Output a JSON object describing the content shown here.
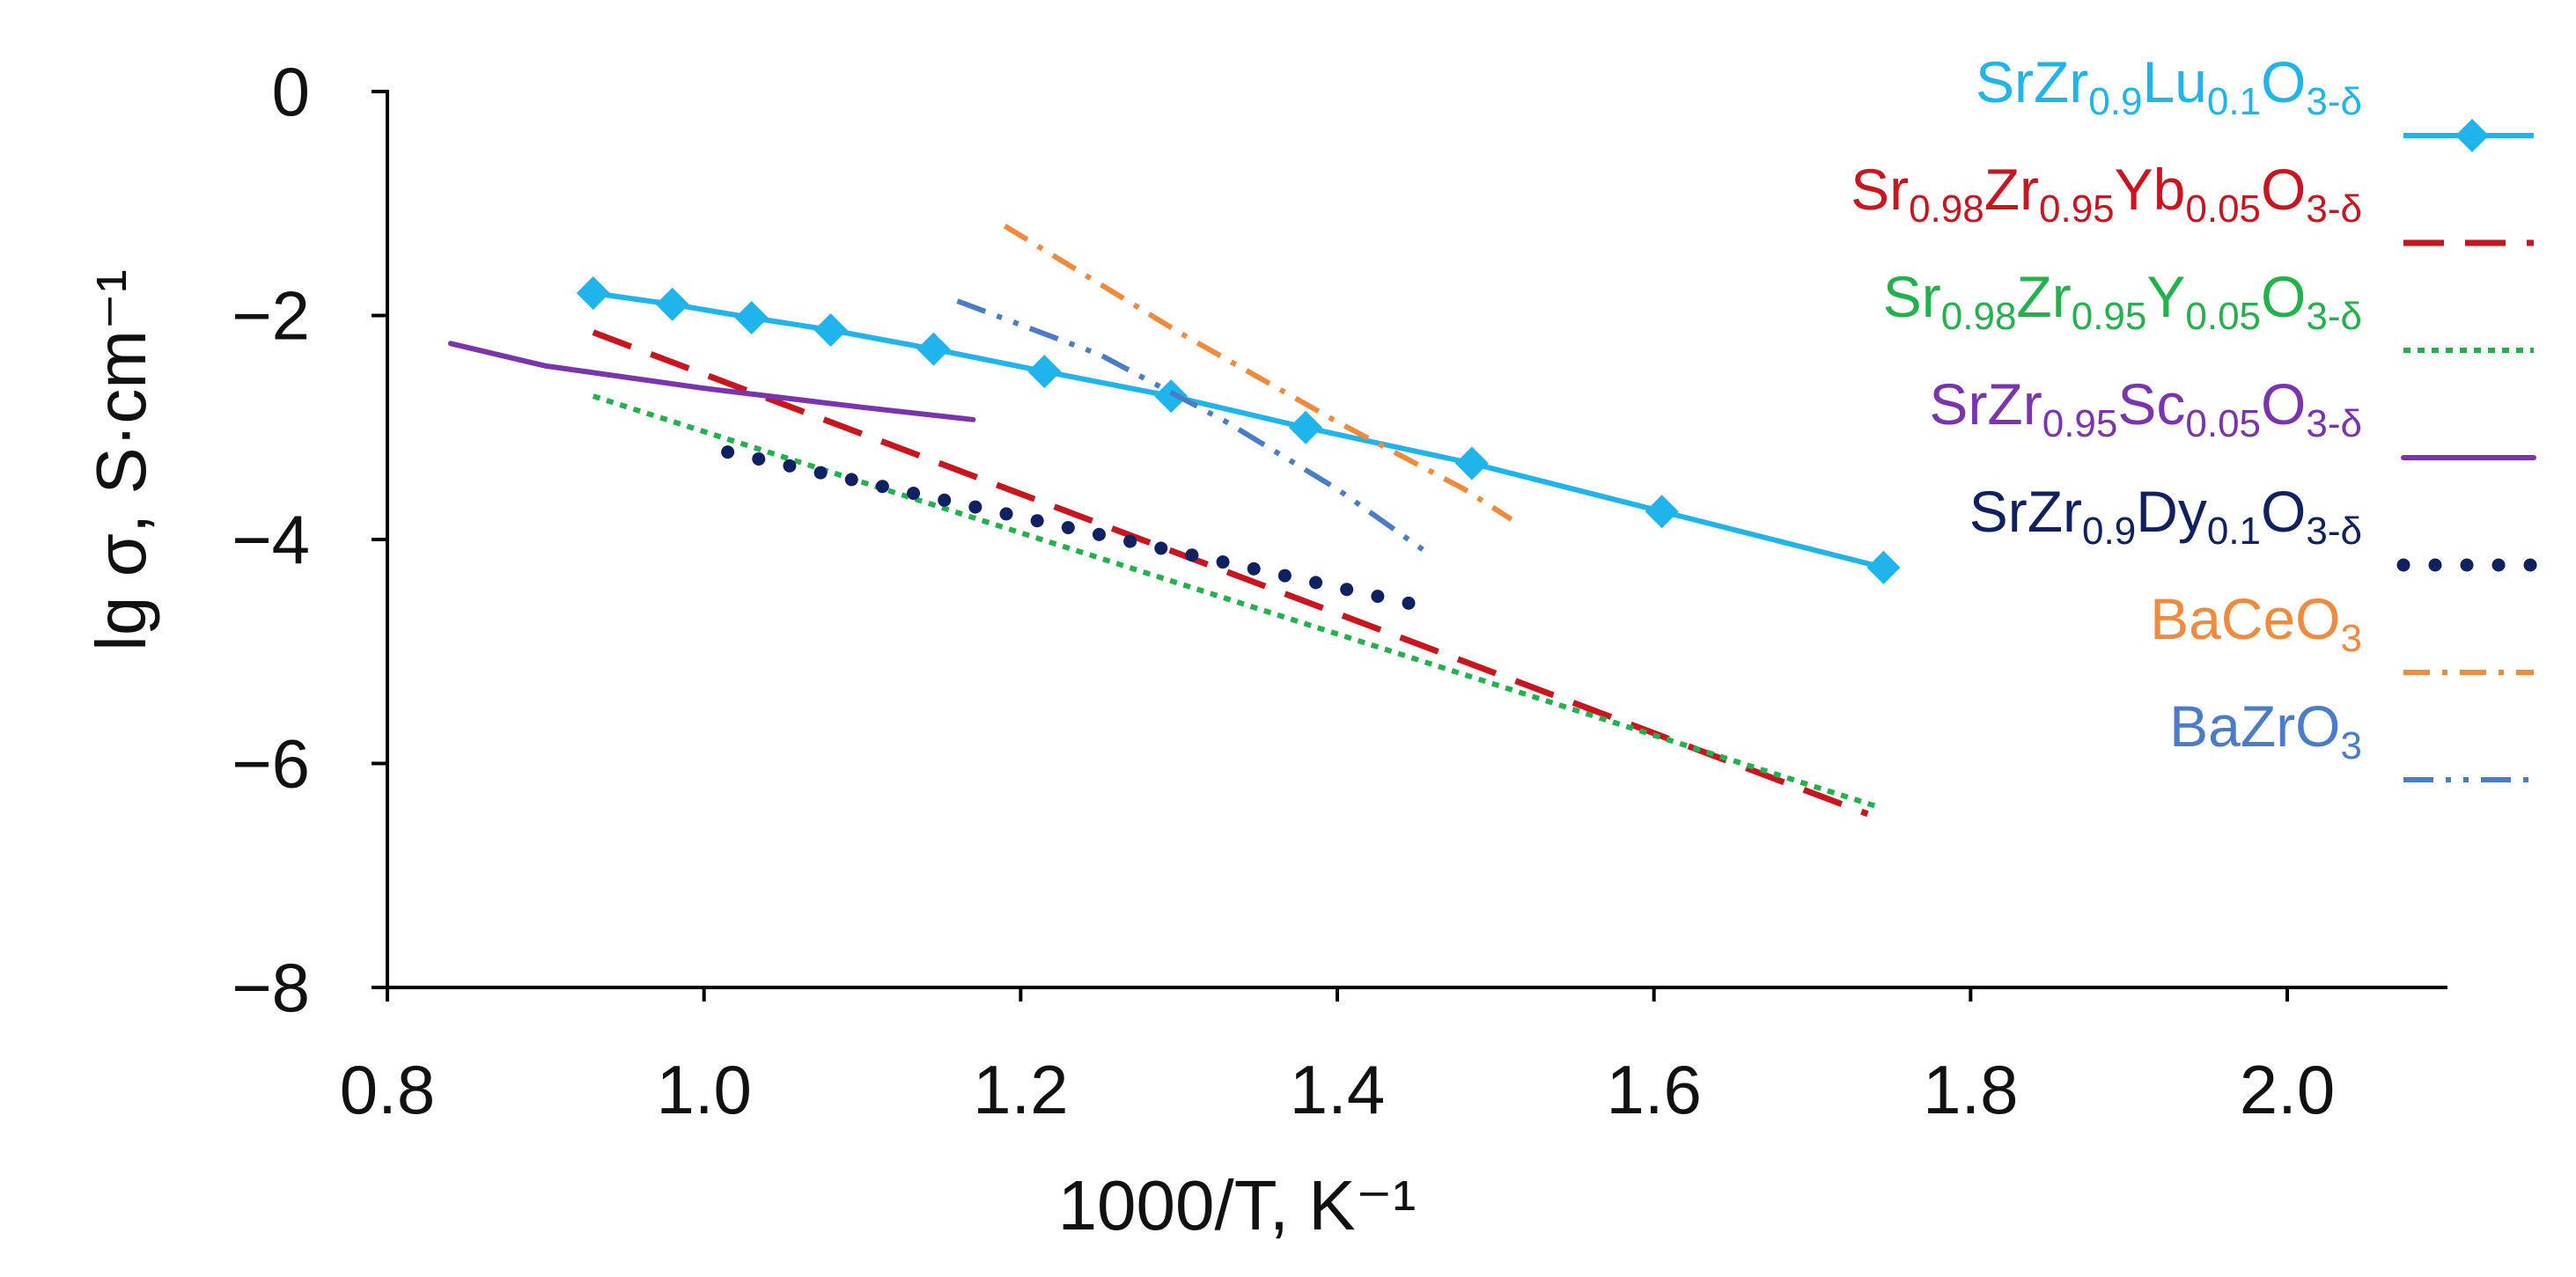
{
  "chart_data": {
    "type": "line",
    "title": "",
    "xlabel": "1000/T, K⁻¹",
    "ylabel": "lg σ, S·cm⁻¹",
    "xlim": [
      0.8,
      2.1
    ],
    "ylim": [
      -8,
      0
    ],
    "x_ticks": [
      "0.8",
      "1.0",
      "1.2",
      "1.4",
      "1.6",
      "1.8",
      "2.0"
    ],
    "y_ticks": [
      "0",
      "−2",
      "−4",
      "−6",
      "−8"
    ],
    "grid": false,
    "legend_position": "right",
    "series": [
      {
        "name": "SrZr0.9Lu0.1O3-δ",
        "legend": [
          {
            "t": "SrZr"
          },
          {
            "t": "0.9",
            "sub": true
          },
          {
            "t": "Lu"
          },
          {
            "t": "0.1",
            "sub": true
          },
          {
            "t": "O"
          },
          {
            "t": "3-δ",
            "sub": true
          }
        ],
        "color": "#1fb4ec",
        "style": "solid-diamond",
        "x": [
          0.93,
          0.98,
          1.03,
          1.08,
          1.145,
          1.215,
          1.295,
          1.38,
          1.485,
          1.605,
          1.745
        ],
        "y": [
          -1.8,
          -1.9,
          -2.02,
          -2.13,
          -2.3,
          -2.5,
          -2.72,
          -3.0,
          -3.32,
          -3.75,
          -4.25
        ]
      },
      {
        "name": "Sr0.98Zr0.95Yb0.05O3-δ",
        "legend": [
          {
            "t": "Sr"
          },
          {
            "t": "0.98",
            "sub": true
          },
          {
            "t": "Zr"
          },
          {
            "t": "0.95",
            "sub": true
          },
          {
            "t": "Yb"
          },
          {
            "t": "0.05",
            "sub": true
          },
          {
            "t": "O"
          },
          {
            "t": "3-δ",
            "sub": true
          }
        ],
        "color": "#c9151e",
        "style": "dashed",
        "x": [
          0.93,
          1.735
        ],
        "y": [
          -2.15,
          -6.45
        ]
      },
      {
        "name": "Sr0.98Zr0.95Y0.05O3-δ",
        "legend": [
          {
            "t": "Sr"
          },
          {
            "t": "0.98",
            "sub": true
          },
          {
            "t": "Zr"
          },
          {
            "t": "0.95",
            "sub": true
          },
          {
            "t": "Y"
          },
          {
            "t": "0.05",
            "sub": true
          },
          {
            "t": "O"
          },
          {
            "t": "3-δ",
            "sub": true
          }
        ],
        "color": "#22b24c",
        "style": "dotted",
        "x": [
          0.93,
          1.74
        ],
        "y": [
          -2.72,
          -6.38
        ]
      },
      {
        "name": "SrZr0.95Sc0.05O3-δ",
        "legend": [
          {
            "t": "SrZr"
          },
          {
            "t": "0.95",
            "sub": true
          },
          {
            "t": "Sc"
          },
          {
            "t": "0.05",
            "sub": true
          },
          {
            "t": "O"
          },
          {
            "t": "3-δ",
            "sub": true
          }
        ],
        "color": "#7b34ad",
        "style": "solid",
        "x": [
          0.84,
          0.9,
          1.0,
          1.1,
          1.17
        ],
        "y": [
          -2.25,
          -2.45,
          -2.65,
          -2.82,
          -2.93
        ]
      },
      {
        "name": "SrZr0.9Dy0.1O3-δ",
        "legend": [
          {
            "t": "SrZr"
          },
          {
            "t": "0.9",
            "sub": true
          },
          {
            "t": "Dy"
          },
          {
            "t": "0.1",
            "sub": true
          },
          {
            "t": "O"
          },
          {
            "t": "3-δ",
            "sub": true
          }
        ],
        "color": "#0f2163",
        "style": "dots",
        "x": [
          1.015,
          1.455
        ],
        "y": [
          -3.22,
          -4.6
        ]
      },
      {
        "name": "BaCeO3",
        "legend": [
          {
            "t": "BaCeO"
          },
          {
            "t": "3",
            "sub": true
          }
        ],
        "color": "#f08a3c",
        "style": "dashdot",
        "x": [
          1.19,
          1.3,
          1.4,
          1.48,
          1.51
        ],
        "y": [
          -1.2,
          -2.15,
          -2.95,
          -3.55,
          -3.82
        ]
      },
      {
        "name": "BaZrO3",
        "legend": [
          {
            "t": "BaZrO"
          },
          {
            "t": "3",
            "sub": true
          }
        ],
        "color": "#4a7cc9",
        "style": "dashdotdot",
        "x": [
          1.16,
          1.25,
          1.33,
          1.4,
          1.46
        ],
        "y": [
          -1.87,
          -2.35,
          -2.95,
          -3.55,
          -4.15
        ]
      }
    ]
  }
}
